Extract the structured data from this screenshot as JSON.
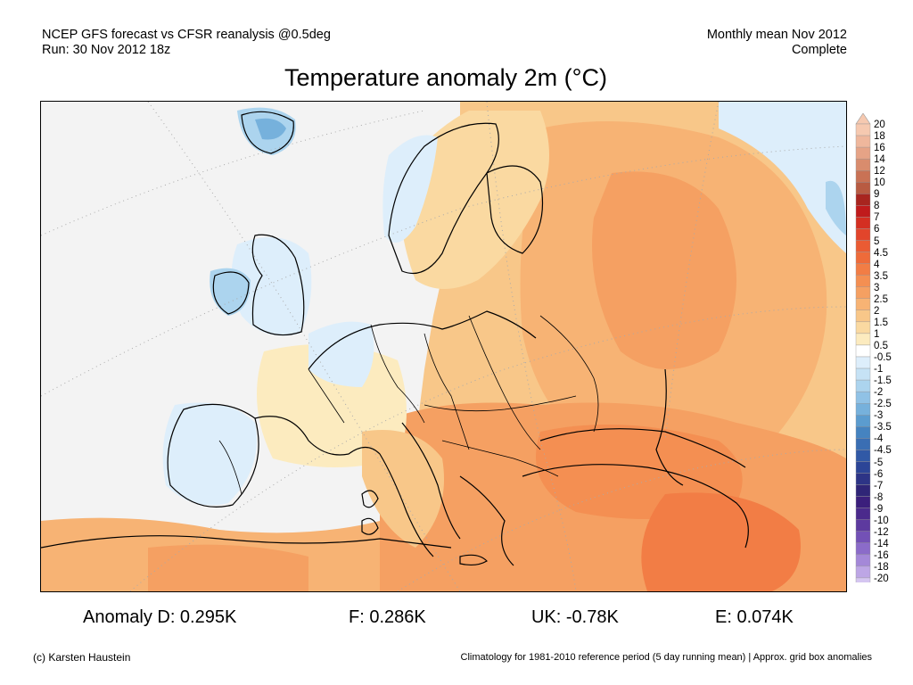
{
  "header": {
    "line1_left": "NCEP GFS forecast vs CFSR reanalysis @0.5deg",
    "line2_left": "Run: 30 Nov 2012 18z",
    "line1_right": "Monthly mean Nov 2012",
    "line2_right": "Complete"
  },
  "title": "Temperature anomaly 2m (°C)",
  "colorbar": {
    "labels": [
      "20",
      "18",
      "16",
      "14",
      "12",
      "10",
      "9",
      "8",
      "7",
      "6",
      "5",
      "4.5",
      "4",
      "3.5",
      "3",
      "2.5",
      "2",
      "1.5",
      "1",
      "0.5",
      "-0.5",
      "-1",
      "-1.5",
      "-2",
      "-2.5",
      "-3",
      "-3.5",
      "-4",
      "-4.5",
      "-5",
      "-6",
      "-7",
      "-8",
      "-9",
      "-10",
      "-12",
      "-14",
      "-16",
      "-18",
      "-20"
    ],
    "colors": [
      "#f6c9b0",
      "#efb79c",
      "#e6a386",
      "#d98c6d",
      "#c97255",
      "#b85b42",
      "#a8251f",
      "#c01b1c",
      "#d42f22",
      "#e2452b",
      "#ea5b33",
      "#ee6b3a",
      "#f27d45",
      "#f48f52",
      "#f5a062",
      "#f7b374",
      "#f8c789",
      "#fad9a1",
      "#fcebbf",
      "#ffffff",
      "#ddeefb",
      "#c6e2f5",
      "#acd4ee",
      "#90c2e6",
      "#76b1dc",
      "#5b9ccf",
      "#4583c0",
      "#3a6eb3",
      "#3159a6",
      "#2c4597",
      "#2d3486",
      "#2f2577",
      "#3b1f7c",
      "#4b2a8c",
      "#5d3a9f",
      "#7351b6",
      "#8b6bc9",
      "#a488d8",
      "#bda6e5",
      "#d5c6f1"
    ]
  },
  "map_colors": {
    "neutral": "#f3f3f3",
    "land_warm1": "#fcebbf",
    "land_warm2": "#fad9a1",
    "land_warm3": "#f8c789",
    "land_warm4": "#f7b374",
    "land_warm5": "#f5a062",
    "land_warm6": "#f48f52",
    "land_warm7": "#f27d45",
    "cold1": "#ddeefb",
    "cold2": "#acd4ee",
    "cold3": "#76b1dc",
    "coast": "#000000",
    "gridline": "#aaaaaa"
  },
  "stats": {
    "anomaly_d": "Anomaly D: 0.295K",
    "f": "F: 0.286K",
    "uk": "UK: -0.78K",
    "e": "E: 0.074K"
  },
  "footer": {
    "copyright": "(c) Karsten Haustein",
    "note": "Climatology for 1981-2010 reference period (5 day running mean) | Approx. grid box anomalies"
  }
}
